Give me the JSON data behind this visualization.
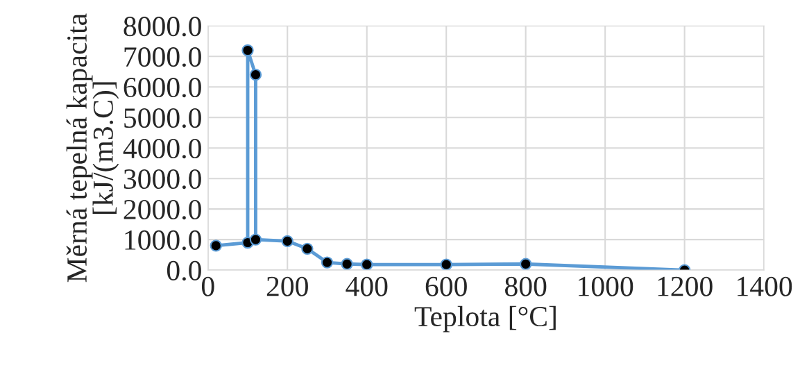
{
  "chart_data": {
    "type": "line",
    "xlabel": "Teplota [°C]",
    "ylabel": "Měrná tepelná kapacita\n[kJ/(m3.C)]",
    "series": [
      {
        "color": "#5b9bd5",
        "x": [
          20,
          100,
          100,
          120,
          120,
          200,
          250,
          300,
          350,
          400,
          600,
          800,
          1200
        ],
        "values": [
          800,
          900,
          7200,
          6400,
          1000,
          950,
          700,
          250,
          200,
          180,
          180,
          200,
          0
        ]
      }
    ],
    "xlim": [
      0,
      1400
    ],
    "xticks": [
      0,
      200,
      400,
      600,
      800,
      1000,
      1200,
      1400
    ],
    "ylim": [
      0,
      8000
    ],
    "yticks": [
      {
        "value": 0,
        "label": "0.0"
      },
      {
        "value": 1000,
        "label": "1000.0"
      },
      {
        "value": 2000,
        "label": "2000.0"
      },
      {
        "value": 3000,
        "label": "3000.0"
      },
      {
        "value": 4000,
        "label": "4000.0"
      },
      {
        "value": 5000,
        "label": "5000.0"
      },
      {
        "value": 6000,
        "label": "6000.0"
      },
      {
        "value": 7000,
        "label": "7000.0"
      },
      {
        "value": 8000,
        "label": "8000.0"
      }
    ],
    "grid": true,
    "marker": "circle",
    "line_style": "solid"
  }
}
